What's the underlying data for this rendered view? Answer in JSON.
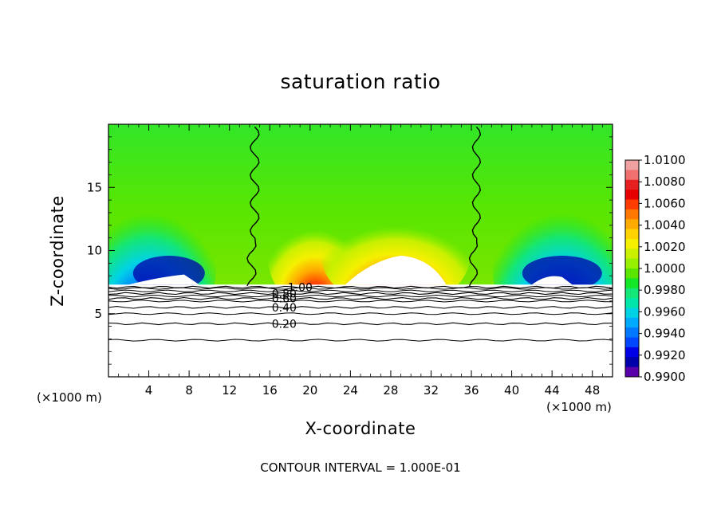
{
  "chart_data": {
    "type": "heatmap",
    "title": "saturation ratio",
    "xlabel": "X-coordinate",
    "ylabel": "Z-coordinate",
    "x_unit_left": "(×1000 m)",
    "x_unit_right": "(×1000 m)",
    "footer": "CONTOUR INTERVAL = 1.000E-01",
    "xlim": [
      0,
      50
    ],
    "ylim": [
      0,
      20
    ],
    "x_ticks": [
      4,
      8,
      12,
      16,
      20,
      24,
      28,
      32,
      36,
      40,
      44,
      48
    ],
    "y_ticks": [
      5,
      10,
      15
    ],
    "colorbar": {
      "labels": [
        "1.0100",
        "1.0080",
        "1.0060",
        "1.0040",
        "1.0020",
        "1.0000",
        "0.9980",
        "0.9960",
        "0.9940",
        "0.9920",
        "0.9900"
      ],
      "range": [
        0.99,
        1.01
      ],
      "colors_top_to_bottom": [
        "#f0a0a0",
        "#f07070",
        "#e62020",
        "#e60000",
        "#ff3c00",
        "#ff7800",
        "#ffaa00",
        "#ffd200",
        "#f5f000",
        "#c8f000",
        "#96f000",
        "#5ae600",
        "#14e628",
        "#14e678",
        "#00e6aa",
        "#00d2e6",
        "#00aaff",
        "#0078ff",
        "#0046ff",
        "#0000e6",
        "#0000aa",
        "#5a00aa"
      ]
    },
    "contour_lines": [
      {
        "label": "1.00",
        "z": 7.1
      },
      {
        "label": "0.80",
        "z": 6.6
      },
      {
        "label": "0.60",
        "z": 6.2
      },
      {
        "label": "0.40",
        "z": 5.5
      },
      {
        "label": "0.20",
        "z": 4.2
      }
    ],
    "saturation_boundary_x": [
      14.5,
      36.5
    ],
    "subsaturated_top_z": 7.3
  }
}
